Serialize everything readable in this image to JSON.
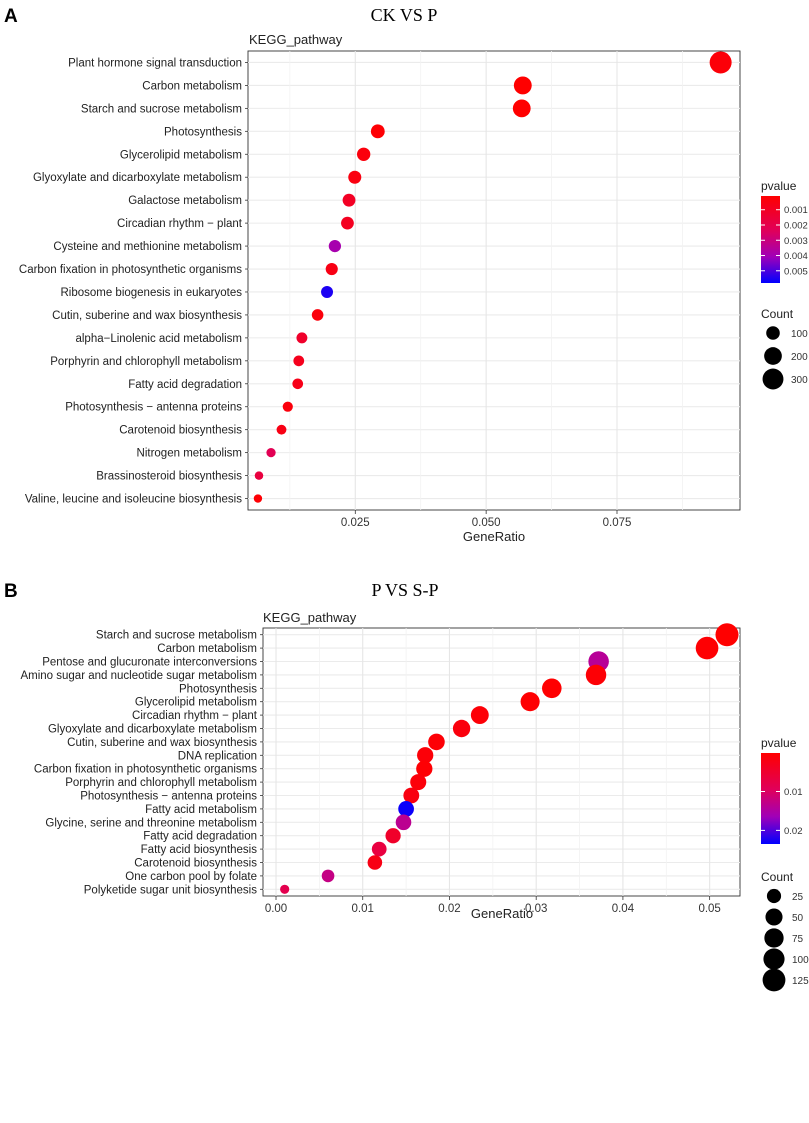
{
  "chart_data": [
    {
      "panel_letter": "A",
      "type": "scatter",
      "title": "CK VS P",
      "ylabel": "KEGG_pathway",
      "xlabel": "GeneRatio",
      "xlim": [
        0.0045,
        0.0985
      ],
      "xticks": [
        0.025,
        0.05,
        0.075
      ],
      "xtick_labels": [
        "0.025",
        "0.050",
        "0.075"
      ],
      "pathways": [
        "Plant hormone signal transduction",
        "Carbon metabolism",
        "Starch and sucrose metabolism",
        "Photosynthesis",
        "Glycerolipid metabolism",
        "Glyoxylate and dicarboxylate metabolism",
        "Galactose metabolism",
        "Circadian rhythm − plant",
        "Cysteine and methionine metabolism",
        "Carbon fixation in photosynthetic organisms",
        "Ribosome biogenesis in eukaryotes",
        "Cutin, suberine and wax biosynthesis",
        "alpha−Linolenic acid metabolism",
        "Porphyrin and chlorophyll metabolism",
        "Fatty acid degradation",
        "Photosynthesis − antenna proteins",
        "Carotenoid biosynthesis",
        "Nitrogen metabolism",
        "Brassinosteroid biosynthesis",
        "Valine, leucine and isoleucine biosynthesis"
      ],
      "gene_ratio": [
        0.0948,
        0.057,
        0.0568,
        0.0293,
        0.0266,
        0.0249,
        0.0238,
        0.0235,
        0.0211,
        0.0205,
        0.0196,
        0.0178,
        0.0148,
        0.0142,
        0.014,
        0.0121,
        0.0109,
        0.0089,
        0.0066,
        0.0064
      ],
      "count": [
        340,
        205,
        203,
        105,
        95,
        89,
        85,
        84,
        75,
        73,
        70,
        64,
        53,
        51,
        50,
        43,
        39,
        32,
        24,
        23
      ],
      "pvalue": [
        0.0003,
        0.0001,
        0.0001,
        0.0002,
        0.0004,
        0.0005,
        0.001,
        0.0009,
        0.0039,
        0.0006,
        0.0055,
        0.0004,
        0.0012,
        0.0008,
        0.0007,
        0.0004,
        0.0006,
        0.0022,
        0.0017,
        0.0002
      ],
      "pvalue_legend": {
        "title": "pvalue",
        "min": 0.0001,
        "max": 0.0058,
        "ticks": [
          0.001,
          0.002,
          0.003,
          0.004,
          0.005
        ],
        "tick_labels": [
          "0.001",
          "0.002",
          "0.003",
          "0.004",
          "0.005"
        ],
        "low_color": "#ff0000",
        "high_color": "#0000ff"
      },
      "count_legend": {
        "title": "Count",
        "values": [
          100,
          200,
          300
        ],
        "labels": [
          "100",
          "200",
          "300"
        ],
        "range": [
          23,
          340
        ]
      }
    },
    {
      "panel_letter": "B",
      "type": "scatter",
      "title": "P VS S-P",
      "ylabel": "KEGG_pathway",
      "xlabel": "GeneRatio",
      "xlim": [
        -0.0015,
        0.0535
      ],
      "xticks": [
        0.0,
        0.01,
        0.02,
        0.03,
        0.04,
        0.05
      ],
      "xtick_labels": [
        "0.00",
        "0.01",
        "0.02",
        "0.03",
        "0.04",
        "0.05"
      ],
      "pathways": [
        "Starch and sucrose metabolism",
        "Carbon metabolism",
        "Pentose and glucuronate interconversions",
        "Amino sugar and nucleotide sugar metabolism",
        "Photosynthesis",
        "Glycerolipid metabolism",
        "Circadian rhythm − plant",
        "Glyoxylate and dicarboxylate metabolism",
        "Cutin, suberine and wax biosynthesis",
        "DNA replication",
        "Carbon fixation in photosynthetic organisms",
        "Porphyrin and chlorophyll metabolism",
        "Photosynthesis − antenna proteins",
        "Fatty acid metabolism",
        "Glycine, serine and threonine metabolism",
        "Fatty acid degradation",
        "Fatty acid biosynthesis",
        "Carotenoid biosynthesis",
        "One carbon pool by folate",
        "Polyketide sugar unit biosynthesis"
      ],
      "gene_ratio": [
        0.052,
        0.0497,
        0.0372,
        0.0369,
        0.0318,
        0.0293,
        0.0235,
        0.0214,
        0.0185,
        0.0172,
        0.0171,
        0.0164,
        0.0156,
        0.015,
        0.0147,
        0.0135,
        0.0119,
        0.0114,
        0.006,
        0.001
      ],
      "count": [
        128,
        122,
        91,
        90,
        78,
        72,
        58,
        53,
        45,
        42,
        42,
        40,
        38,
        37,
        36,
        33,
        29,
        28,
        15,
        2
      ],
      "pvalue": [
        0.0001,
        0.0004,
        0.014,
        0.0006,
        0.0002,
        0.0003,
        0.0008,
        0.0015,
        0.0007,
        0.0009,
        0.0005,
        0.0011,
        0.0018,
        0.023,
        0.0135,
        0.0045,
        0.0068,
        0.0022,
        0.0125,
        0.0082
      ],
      "pvalue_legend": {
        "title": "pvalue",
        "min": 0.0001,
        "max": 0.0235,
        "ticks": [
          0.01,
          0.02
        ],
        "tick_labels": [
          "0.01",
          "0.02"
        ],
        "low_color": "#ff0000",
        "high_color": "#0000ff"
      },
      "count_legend": {
        "title": "Count",
        "values": [
          25,
          50,
          75,
          100,
          125
        ],
        "labels": [
          "25",
          "50",
          "75",
          "100",
          "125"
        ],
        "range": [
          2,
          128
        ]
      }
    }
  ]
}
